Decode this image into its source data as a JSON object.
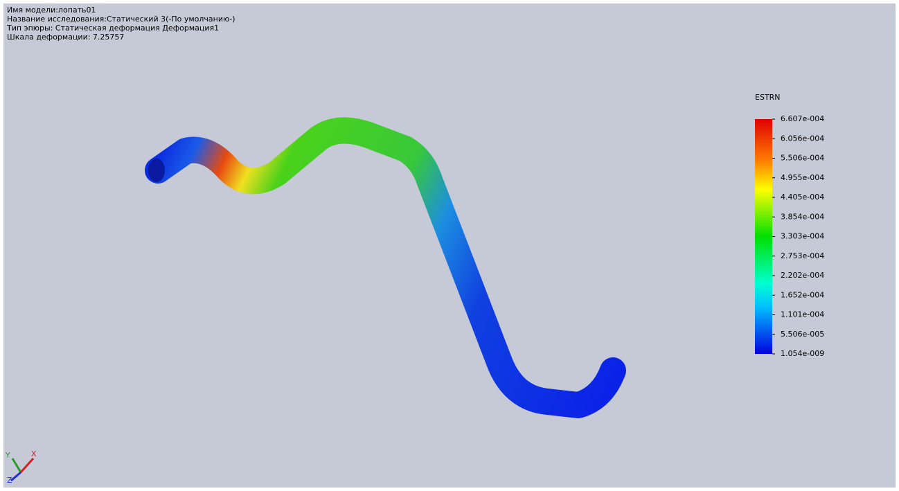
{
  "header": {
    "lines": [
      "Имя модели:лопать01",
      "Название исследования:Статический 3(-По умолчанию-)",
      "Тип эпюры: Статическая деформация Деформация1",
      "Шкала деформации: 7.25757"
    ]
  },
  "legend": {
    "title": "ESTRN",
    "labels": [
      "6.607e-004",
      "6.056e-004",
      "5.506e-004",
      "4.955e-004",
      "4.405e-004",
      "3.854e-004",
      "3.303e-004",
      "2.753e-004",
      "2.202e-004",
      "1.652e-004",
      "1.101e-004",
      "5.506e-005",
      "1.054e-009"
    ]
  },
  "triad": {
    "y": "Y",
    "x": "X",
    "z": "Z"
  }
}
